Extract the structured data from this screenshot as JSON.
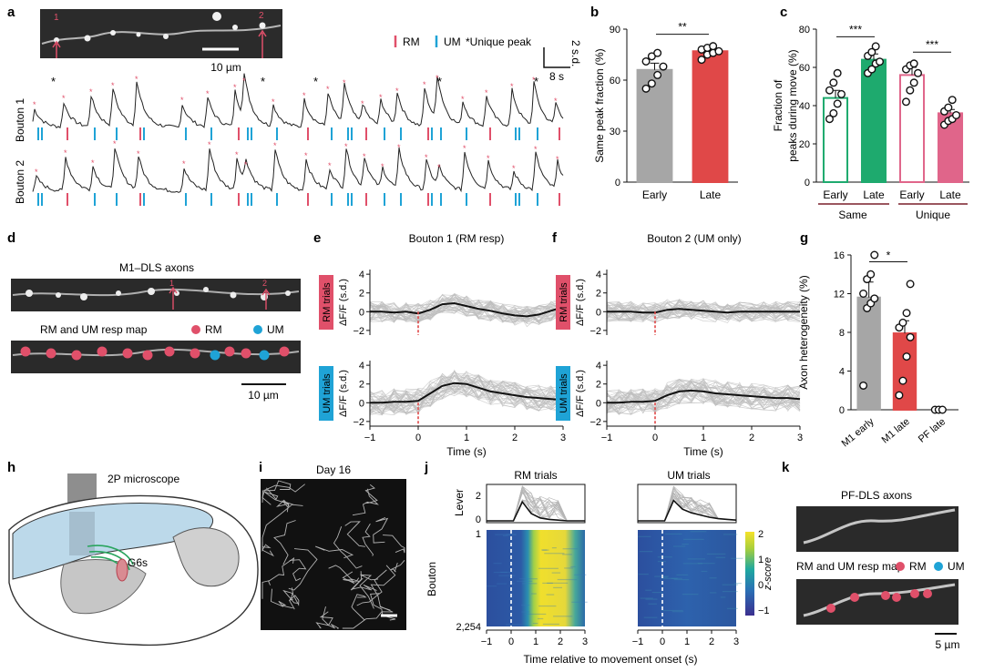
{
  "panel_letters": [
    "a",
    "b",
    "c",
    "d",
    "e",
    "f",
    "g",
    "h",
    "i",
    "j",
    "k"
  ],
  "panel_a": {
    "roi_labels": [
      "1",
      "2"
    ],
    "scale_bar": "10 µm",
    "legend": {
      "rm": "RM",
      "um": "UM",
      "unique": "*Unique peak"
    },
    "scale_y": "2 s.d.",
    "scale_x": "8 s",
    "trace_labels": [
      "Bouton 1",
      "Bouton 2"
    ]
  },
  "colors": {
    "rm": "#e0506a",
    "um": "#1fa3d6",
    "gray_bar": "#a6a6a6",
    "red_bar": "#e04848",
    "green": "#1eaa6e",
    "pink": "#e0658a",
    "dark_red": "#7a1e2a"
  },
  "chart_data": [
    {
      "id": "b",
      "type": "bar",
      "categories": [
        "Early",
        "Late"
      ],
      "values": [
        66,
        77
      ],
      "errors": [
        4,
        2
      ],
      "points": [
        [
          55,
          58,
          63,
          68,
          71,
          74,
          76
        ],
        [
          72,
          75,
          76,
          77,
          78,
          79,
          80
        ]
      ],
      "ylabel": "Same peak fraction (%)",
      "ylim": [
        0,
        90
      ],
      "yticks": [
        "0",
        "30",
        "60",
        "90"
      ],
      "significance": "**"
    },
    {
      "id": "c",
      "type": "bar",
      "categories": [
        "Early",
        "Late",
        "Early",
        "Late"
      ],
      "groups": [
        "Same",
        "Unique"
      ],
      "values": [
        44,
        64,
        56,
        36
      ],
      "errors": [
        4,
        3,
        4,
        2
      ],
      "points": [
        [
          33,
          36,
          41,
          46,
          48,
          52,
          57
        ],
        [
          57,
          59,
          62,
          63,
          66,
          68,
          71
        ],
        [
          42,
          48,
          52,
          57,
          59,
          61,
          62
        ],
        [
          30,
          32,
          33,
          35,
          37,
          39,
          43
        ]
      ],
      "ylabel": "Fraction of peaks during move (%)",
      "ylim": [
        0,
        80
      ],
      "yticks": [
        "0",
        "20",
        "40",
        "60",
        "80"
      ],
      "significance": [
        "***",
        "***"
      ]
    },
    {
      "id": "g",
      "type": "bar",
      "categories": [
        "M1 early",
        "M1 late",
        "PF late"
      ],
      "values": [
        11.6,
        7.9,
        0
      ],
      "errors": [
        1.6,
        1.3,
        0
      ],
      "points": [
        [
          2.5,
          10.5,
          11,
          11.5,
          12,
          13.5,
          14,
          16
        ],
        [
          1.5,
          3,
          5.5,
          7.5,
          8.5,
          9,
          10,
          13
        ],
        [
          0,
          0,
          0
        ]
      ],
      "ylabel": "Axon heterogeneity (%)",
      "ylim": [
        0,
        16
      ],
      "yticks": [
        "0",
        "4",
        "8",
        "12",
        "16"
      ],
      "significance": "*"
    },
    {
      "id": "e",
      "type": "line",
      "title": "Bouton 1 (RM resp)",
      "rows": [
        "RM trials",
        "UM trials"
      ],
      "x": [
        -1,
        -0.75,
        -0.5,
        -0.25,
        0,
        0.25,
        0.5,
        0.75,
        1,
        1.25,
        1.5,
        1.75,
        2,
        2.25,
        2.5,
        2.75,
        3
      ],
      "series": [
        {
          "values": [
            0,
            0,
            -0.1,
            0,
            -0.2,
            0.2,
            0.8,
            0.9,
            0.6,
            0.3,
            0.1,
            -0.2,
            -0.4,
            -0.5,
            -0.3,
            0.1,
            0.5
          ]
        },
        {
          "values": [
            0,
            0,
            0.1,
            0.1,
            0.2,
            1,
            1.8,
            2.1,
            2,
            1.6,
            1.2,
            1,
            0.8,
            0.6,
            0.5,
            0.4,
            0.3
          ]
        }
      ],
      "xlabel": "Time (s)",
      "ylabel": "ΔF/F (s.d.)",
      "xticks": [
        "−1",
        "0",
        "1",
        "2",
        "3"
      ],
      "yticks": [
        "−2",
        "0",
        "2",
        "4"
      ],
      "ylim": [
        -2.5,
        4.5
      ]
    },
    {
      "id": "f",
      "type": "line",
      "title": "Bouton 2 (UM only)",
      "rows": [
        "RM trials",
        "UM trials"
      ],
      "x": [
        -1,
        -0.75,
        -0.5,
        -0.25,
        0,
        0.25,
        0.5,
        0.75,
        1,
        1.25,
        1.5,
        1.75,
        2,
        2.25,
        2.5,
        2.75,
        3
      ],
      "series": [
        {
          "values": [
            0,
            0,
            0,
            -0.1,
            -0.1,
            0.2,
            0.3,
            0.2,
            0.1,
            0,
            -0.1,
            0,
            0,
            0,
            0,
            0,
            0
          ]
        },
        {
          "values": [
            0,
            0,
            0.1,
            0.1,
            0.2,
            0.8,
            1.2,
            1.3,
            1.2,
            1,
            0.9,
            0.8,
            0.7,
            0.6,
            0.5,
            0.5,
            0.4
          ]
        }
      ],
      "xlabel": "Time (s)",
      "ylabel": "ΔF/F (s.d.)",
      "xticks": [
        "−1",
        "0",
        "1",
        "2",
        "3"
      ],
      "yticks": [
        "−2",
        "0",
        "2",
        "4"
      ],
      "ylim": [
        -2.5,
        4.5
      ]
    },
    {
      "id": "j",
      "type": "heatmap",
      "titles": [
        "RM trials",
        "UM trials"
      ],
      "lever_label": "Lever",
      "lever_yticks": [
        "0",
        "2"
      ],
      "row_label": "Bouton",
      "row_ticks": [
        "1",
        "2,254"
      ],
      "xlabel": "Time relative to movement onset (s)",
      "xticks": [
        "−1",
        "0",
        "1",
        "2",
        "3"
      ],
      "colorbar_label": "z-score",
      "colorbar_ticks": [
        "2",
        "1",
        "0",
        "−1"
      ]
    }
  ],
  "panel_d": {
    "title": "M1–DLS axons",
    "map_title": "RM and UM resp map",
    "roi_labels": [
      "1",
      "2"
    ],
    "legend_rm": "RM",
    "legend_um": "UM",
    "scale": "10 µm"
  },
  "panel_h": {
    "title": "2P microscope",
    "indicator": "G6s"
  },
  "panel_i": {
    "title": "Day 16"
  },
  "panel_k": {
    "title": "PF-DLS axons",
    "map_title": "RM and UM resp map",
    "legend_rm": "RM",
    "legend_um": "UM",
    "scale": "5 µm"
  }
}
